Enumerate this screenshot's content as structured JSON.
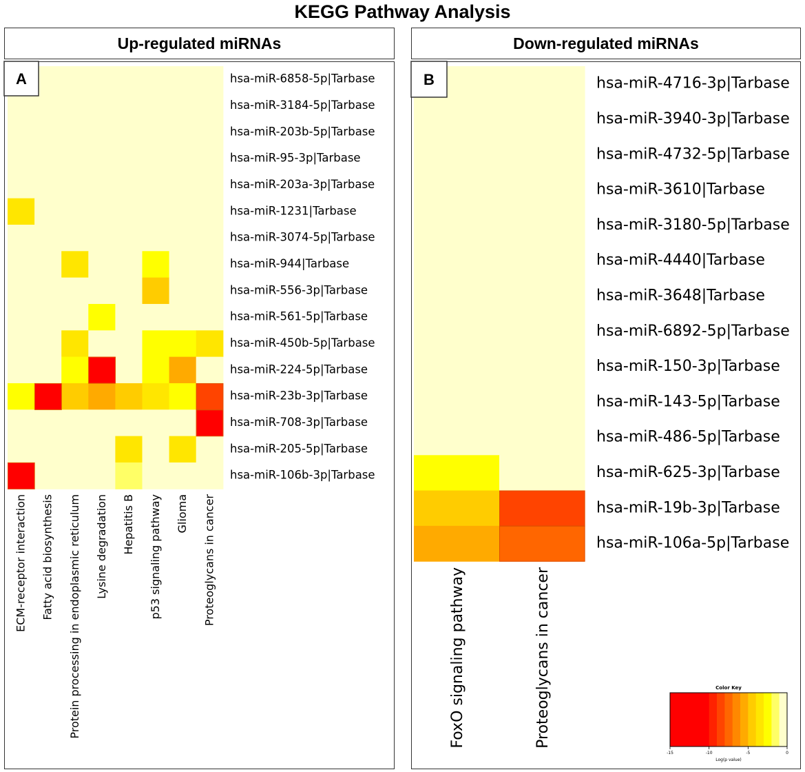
{
  "title": "KEGG Pathway Analysis",
  "colors": {
    "scale": [
      "#ff0000",
      "#ff2200",
      "#ff4400",
      "#ff6600",
      "#ff8800",
      "#ffaa00",
      "#ffcc00",
      "#ffe600",
      "#ffff00",
      "#ffff66",
      "#ffffcc"
    ],
    "panel_border": "#333333"
  },
  "panels": {
    "up": {
      "header": "Up-regulated miRNAs",
      "label": "A"
    },
    "down": {
      "header": "Down-regulated miRNAs",
      "label": "B"
    }
  },
  "chart_data": [
    {
      "type": "heatmap",
      "id": "up",
      "title": "Up-regulated miRNAs",
      "panel_label": "A",
      "columns": [
        "ECM-receptor interaction",
        "Fatty acid biosynthesis",
        "Protein processing in endoplasmic reticulum",
        "Lysine degradation",
        "Hepatitis B",
        "p53 signaling pathway",
        "Glioma",
        "Proteoglycans in cancer"
      ],
      "rows": [
        "hsa-miR-6858-5p|Tarbase",
        "hsa-miR-3184-5p|Tarbase",
        "hsa-miR-203b-5p|Tarbase",
        "hsa-miR-95-3p|Tarbase",
        "hsa-miR-203a-3p|Tarbase",
        "hsa-miR-1231|Tarbase",
        "hsa-miR-3074-5p|Tarbase",
        "hsa-miR-944|Tarbase",
        "hsa-miR-556-3p|Tarbase",
        "hsa-miR-561-5p|Tarbase",
        "hsa-miR-450b-5p|Tarbase",
        "hsa-miR-224-5p|Tarbase",
        "hsa-miR-23b-3p|Tarbase",
        "hsa-miR-708-3p|Tarbase",
        "hsa-miR-205-5p|Tarbase",
        "hsa-miR-106b-3p|Tarbase"
      ],
      "values": [
        [
          0,
          0,
          0,
          0,
          0,
          0,
          0,
          0
        ],
        [
          0,
          0,
          0,
          0,
          0,
          0,
          0,
          0
        ],
        [
          0,
          0,
          0,
          0,
          0,
          0,
          0,
          0
        ],
        [
          0,
          0,
          0,
          0,
          0,
          0,
          0,
          0
        ],
        [
          0,
          0,
          0,
          0,
          0,
          0,
          0,
          0
        ],
        [
          -3,
          0,
          0,
          0,
          0,
          0,
          0,
          0
        ],
        [
          0,
          0,
          0,
          0,
          0,
          0,
          0,
          0
        ],
        [
          0,
          0,
          -3,
          0,
          0,
          -2,
          0,
          0
        ],
        [
          0,
          0,
          0,
          0,
          0,
          -4,
          0,
          0
        ],
        [
          0,
          0,
          0,
          -2,
          0,
          0,
          0,
          0
        ],
        [
          0,
          0,
          -3,
          0,
          0,
          -2,
          -2,
          -3
        ],
        [
          0,
          0,
          -2,
          -12,
          0,
          -2,
          -5,
          0
        ],
        [
          -2,
          -11,
          -4,
          -5,
          -4,
          -3,
          -2,
          -8
        ],
        [
          0,
          0,
          0,
          0,
          0,
          0,
          0,
          -12
        ],
        [
          0,
          0,
          0,
          0,
          -3,
          0,
          -3,
          0
        ],
        [
          -12,
          0,
          0,
          0,
          -1,
          0,
          0,
          0
        ]
      ]
    },
    {
      "type": "heatmap",
      "id": "down",
      "title": "Down-regulated miRNAs",
      "panel_label": "B",
      "columns": [
        "FoxO signaling pathway",
        "Proteoglycans in cancer"
      ],
      "rows": [
        "hsa-miR-4716-3p|Tarbase",
        "hsa-miR-3940-3p|Tarbase",
        "hsa-miR-4732-5p|Tarbase",
        "hsa-miR-3610|Tarbase",
        "hsa-miR-3180-5p|Tarbase",
        "hsa-miR-4440|Tarbase",
        "hsa-miR-3648|Tarbase",
        "hsa-miR-6892-5p|Tarbase",
        "hsa-miR-150-3p|Tarbase",
        "hsa-miR-143-5p|Tarbase",
        "hsa-miR-486-5p|Tarbase",
        "hsa-miR-625-3p|Tarbase",
        "hsa-miR-19b-3p|Tarbase",
        "hsa-miR-106a-5p|Tarbase"
      ],
      "values": [
        [
          0,
          0
        ],
        [
          0,
          0
        ],
        [
          0,
          0
        ],
        [
          0,
          0
        ],
        [
          0,
          0
        ],
        [
          0,
          0
        ],
        [
          0,
          0
        ],
        [
          0,
          0
        ],
        [
          0,
          0
        ],
        [
          0,
          0
        ],
        [
          0,
          0
        ],
        [
          -2,
          0
        ],
        [
          -4,
          -8
        ],
        [
          -5,
          -7
        ]
      ]
    },
    {
      "type": "colorkey",
      "title": "Color Key",
      "xlabel": "Log(p value)",
      "range": [
        -15,
        0
      ],
      "ticks": [
        "-15",
        "-10",
        "-5",
        "0"
      ],
      "bins": [
        -15,
        -10,
        -9,
        -8,
        -7,
        -6,
        -5,
        -4,
        -3,
        -2,
        -1,
        0
      ]
    }
  ]
}
